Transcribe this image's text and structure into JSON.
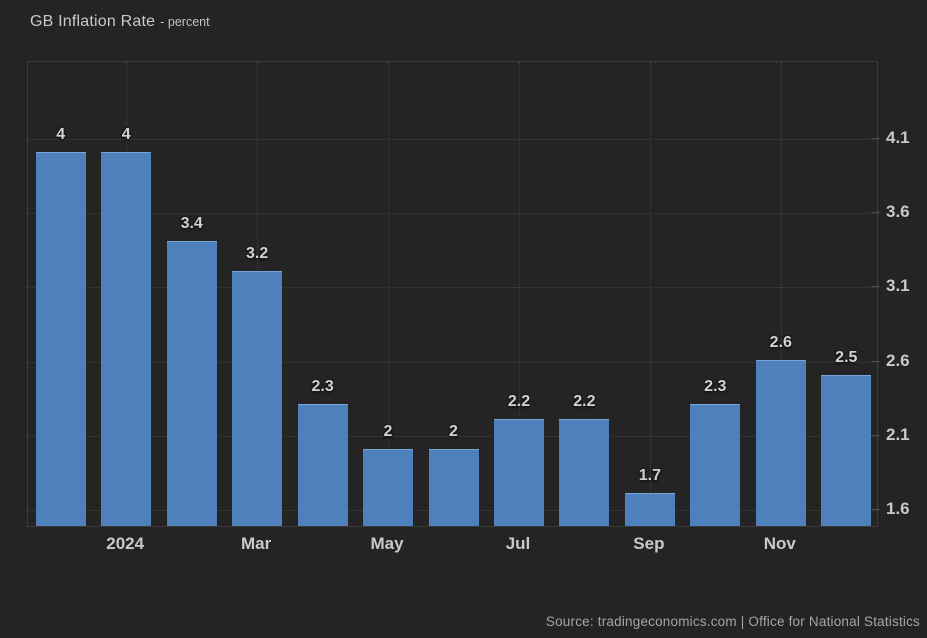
{
  "header": {
    "title": "GB Inflation Rate",
    "subtitle": "- percent"
  },
  "footer": {
    "source": "Source: tradingeconomics.com | Office for National Statistics"
  },
  "colors": {
    "background": "#242424",
    "bar": "#4e81bc",
    "bar_top_highlight": "#79a3d4",
    "grid": "#414141",
    "axis_border": "#3b3b3b",
    "tick_text": "#c9c9c9",
    "value_text": "#d2d2d2",
    "footer_text": "#a6a6a6"
  },
  "chart_data": {
    "type": "bar",
    "title": "GB Inflation Rate",
    "subtitle": "- percent",
    "ylabel": "percent",
    "xlabel": "",
    "values": [
      4,
      4,
      3.4,
      3.2,
      2.3,
      2,
      2,
      2.2,
      2.2,
      1.7,
      2.3,
      2.6,
      2.5
    ],
    "bar_labels": [
      "4",
      "4",
      "3.4",
      "3.2",
      "2.3",
      "2",
      "2",
      "2.2",
      "2.2",
      "1.7",
      "2.3",
      "2.6",
      "2.5"
    ],
    "x_ticks": [
      {
        "bar_index": 1,
        "label": "2024"
      },
      {
        "bar_index": 3,
        "label": "Mar"
      },
      {
        "bar_index": 5,
        "label": "May"
      },
      {
        "bar_index": 7,
        "label": "Jul"
      },
      {
        "bar_index": 9,
        "label": "Sep"
      },
      {
        "bar_index": 11,
        "label": "Nov"
      }
    ],
    "y_ticks": [
      1.6,
      2.1,
      2.6,
      3.1,
      3.6,
      4.1
    ],
    "ylim": [
      1.48,
      4.617
    ],
    "y_axis_side": "right",
    "grid": "dotted",
    "legend": null,
    "source": "Source: tradingeconomics.com | Office for National Statistics"
  }
}
